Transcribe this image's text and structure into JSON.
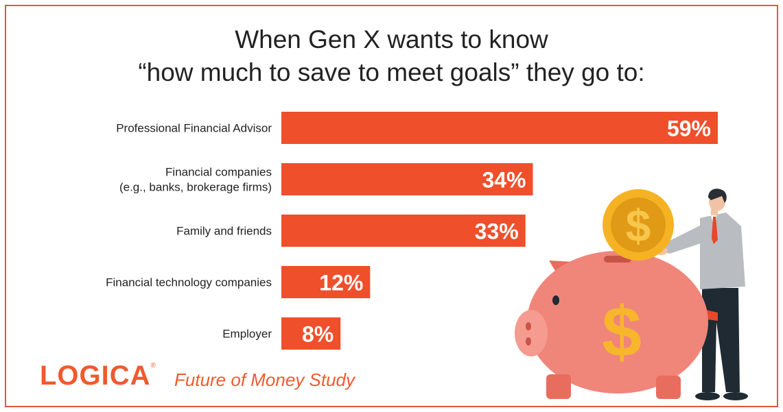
{
  "title": {
    "line1": "When Gen X wants to know",
    "line2": "“how much to save to meet goals” they go to:"
  },
  "brand": {
    "logo": "LOGICA",
    "registered": "®",
    "study": "Future of Money Study"
  },
  "colors": {
    "bar": "#ef4f2b",
    "border": "#e8543a",
    "brand": "#ef5a2e",
    "pig": "#f0857a",
    "coin": "#f5b324"
  },
  "illustration": {
    "icons": [
      "piggy-bank-icon",
      "gold-coin-icon",
      "businessman-icon"
    ]
  },
  "chart_data": {
    "type": "bar",
    "orientation": "horizontal",
    "categories": [
      [
        "Professional Financial Advisor"
      ],
      [
        "Financial companies",
        "(e.g., banks, brokerage firms)"
      ],
      [
        "Family and friends"
      ],
      [
        "Financial technology companies"
      ],
      [
        "Employer"
      ]
    ],
    "values": [
      59,
      34,
      33,
      12,
      8
    ],
    "value_labels": [
      "59%",
      "34%",
      "33%",
      "12%",
      "8%"
    ],
    "unit": "%",
    "xlim": [
      0,
      59
    ],
    "grid": false,
    "legend": "none"
  }
}
